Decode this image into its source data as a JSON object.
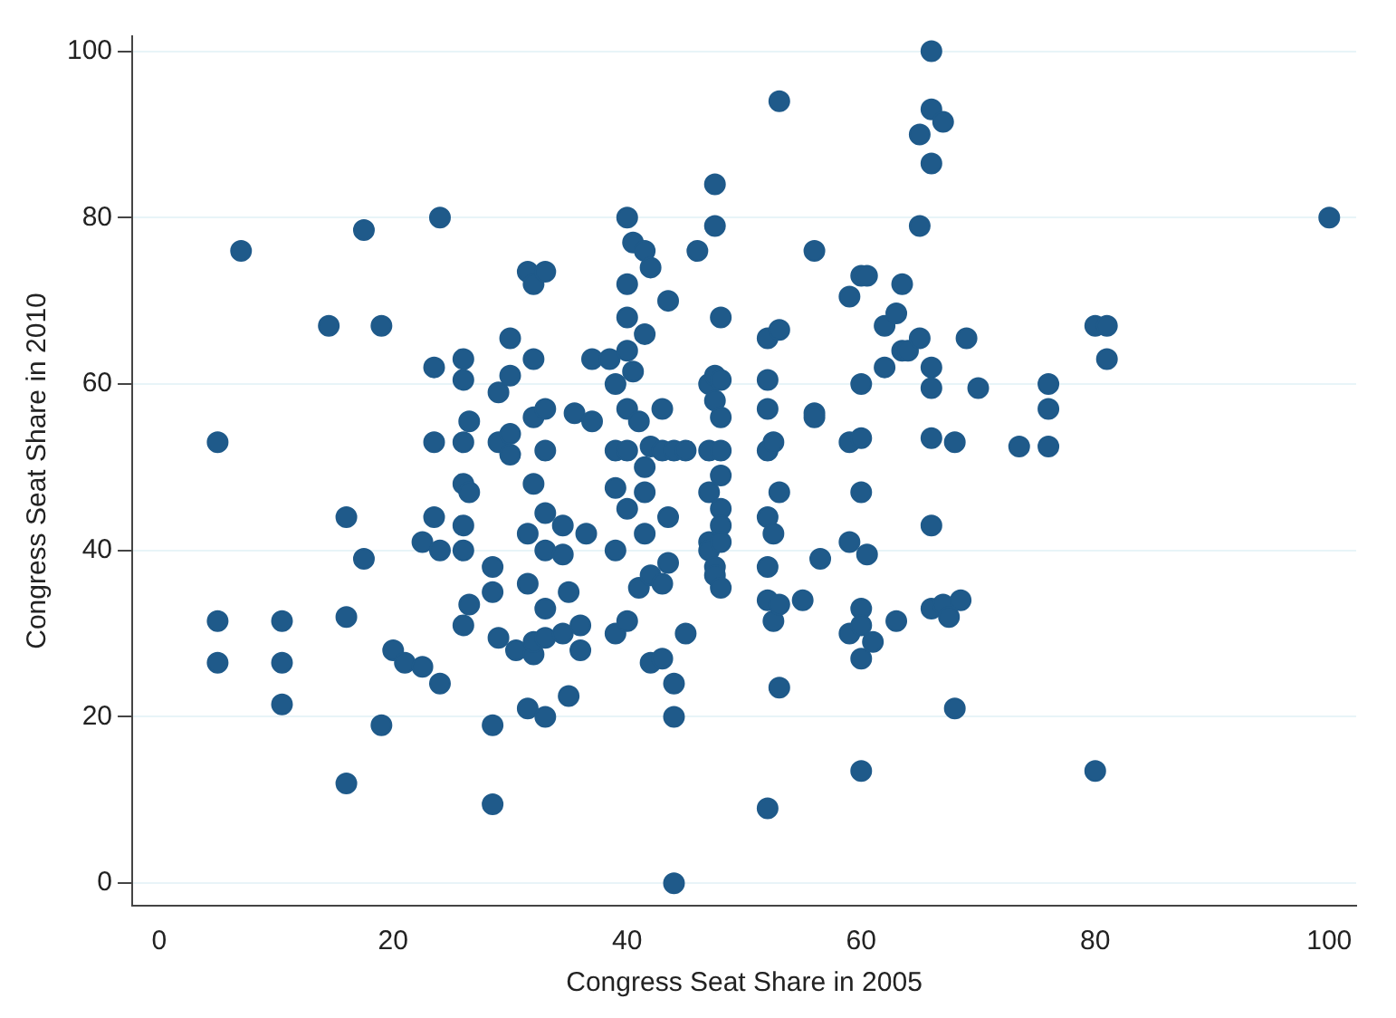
{
  "chart_data": {
    "type": "scatter",
    "xlabel": "Congress Seat Share in 2005",
    "ylabel": "Congress Seat Share in 2010",
    "xlim": [
      -2.3,
      102.3
    ],
    "ylim": [
      -2.7,
      101.8
    ],
    "xticks": [
      0,
      20,
      40,
      60,
      80,
      100
    ],
    "yticks": [
      0,
      20,
      40,
      60,
      80,
      100
    ],
    "grid": "y",
    "legend": false,
    "marker": "circle",
    "series": [
      {
        "color": "#1f5a8a",
        "x": [
          5,
          5,
          5,
          7,
          10.5,
          10.5,
          10.5,
          14.5,
          16,
          16,
          16,
          17.5,
          17.5,
          19,
          19,
          20,
          21,
          22.5,
          22.5,
          23.5,
          23.5,
          23.5,
          24,
          24,
          24,
          26,
          26,
          26,
          26,
          26,
          26,
          26,
          26.5,
          26.5,
          26.5,
          28.5,
          28.5,
          28.5,
          28.5,
          29,
          29,
          29,
          30,
          30,
          30,
          30,
          30.5,
          31.5,
          31.5,
          31.5,
          31.5,
          32,
          32,
          32,
          32,
          32,
          32,
          33,
          33,
          33,
          33,
          33,
          33,
          33,
          33,
          34.5,
          34.5,
          34.5,
          35,
          35,
          35.5,
          36,
          36,
          36.5,
          37,
          37,
          38.5,
          39,
          39,
          39,
          39,
          39,
          40,
          40,
          40,
          40,
          40,
          40,
          40,
          40,
          40.5,
          40.5,
          41,
          41,
          41.5,
          41.5,
          41.5,
          41.5,
          41.5,
          42,
          42,
          42,
          42,
          43,
          43,
          43,
          43,
          43.5,
          43.5,
          43.5,
          44,
          44,
          44,
          44,
          45,
          45,
          46,
          47,
          47,
          47,
          47,
          47,
          47.5,
          47.5,
          47.5,
          47.5,
          47.5,
          47.5,
          48,
          48,
          48,
          48,
          48,
          48,
          48,
          48,
          48,
          52,
          52,
          52,
          52,
          52,
          52,
          52,
          52,
          52.5,
          52.5,
          52.5,
          53,
          53,
          53,
          53,
          53,
          55,
          56,
          56,
          56,
          56.5,
          59,
          59,
          59,
          59,
          60,
          60,
          60,
          60,
          60,
          60,
          60,
          60,
          60.5,
          60.5,
          61,
          62,
          62,
          63,
          63,
          63.5,
          63.5,
          64,
          65,
          65,
          65,
          66,
          66,
          66,
          66,
          66,
          66,
          66,
          66,
          67,
          67,
          67.5,
          68,
          68,
          68.5,
          69,
          70,
          73.5,
          76,
          76,
          76,
          80,
          80,
          81,
          81,
          100
        ],
        "values": [
          53,
          31.5,
          26.5,
          76,
          31.5,
          26.5,
          21.5,
          67,
          44,
          32,
          12,
          78.5,
          39,
          67,
          19,
          28,
          26.5,
          26,
          41,
          53,
          44,
          62,
          80,
          40,
          24,
          63,
          60.5,
          53,
          48,
          43,
          40,
          31,
          55.5,
          47,
          33.5,
          38,
          35,
          19,
          9.5,
          53,
          59,
          29.5,
          65.5,
          61,
          54,
          51.5,
          28,
          73.5,
          36,
          42,
          21,
          72,
          63,
          56,
          48,
          27.5,
          29,
          73.5,
          57,
          52,
          44.5,
          40,
          33,
          29.5,
          20,
          43,
          39.5,
          30,
          35,
          22.5,
          56.5,
          28,
          31,
          42,
          63,
          55.5,
          63,
          60,
          52,
          47.5,
          40,
          30,
          80,
          72,
          68,
          64,
          57,
          52,
          45,
          31.5,
          61.5,
          77,
          55.5,
          35.5,
          76,
          66,
          50,
          47,
          42,
          52.5,
          74,
          37,
          26.5,
          57,
          52,
          36,
          27,
          70,
          44,
          38.5,
          52,
          24,
          20,
          0,
          52,
          30,
          76,
          60,
          52,
          47,
          41,
          40,
          84,
          79,
          61,
          58,
          38,
          37,
          68,
          60.5,
          56,
          52,
          49,
          45,
          43,
          41,
          35.5,
          65.5,
          60.5,
          57,
          52,
          44,
          38,
          34,
          9,
          53,
          42,
          31.5,
          94,
          66.5,
          47,
          33.5,
          23.5,
          34,
          76,
          56.5,
          56,
          39,
          70.5,
          53,
          41,
          30,
          73,
          60,
          53.5,
          47,
          33,
          31,
          27,
          13.5,
          73,
          39.5,
          29,
          67,
          62,
          68.5,
          31.5,
          72,
          64,
          64,
          90,
          79,
          65.5,
          100,
          93,
          86.5,
          62,
          59.5,
          53.5,
          43,
          33,
          91.5,
          33.5,
          32,
          53,
          21,
          34,
          65.5,
          59.5,
          52.5,
          60,
          57,
          52.5,
          67,
          13.5,
          67,
          63,
          80
        ]
      }
    ]
  }
}
